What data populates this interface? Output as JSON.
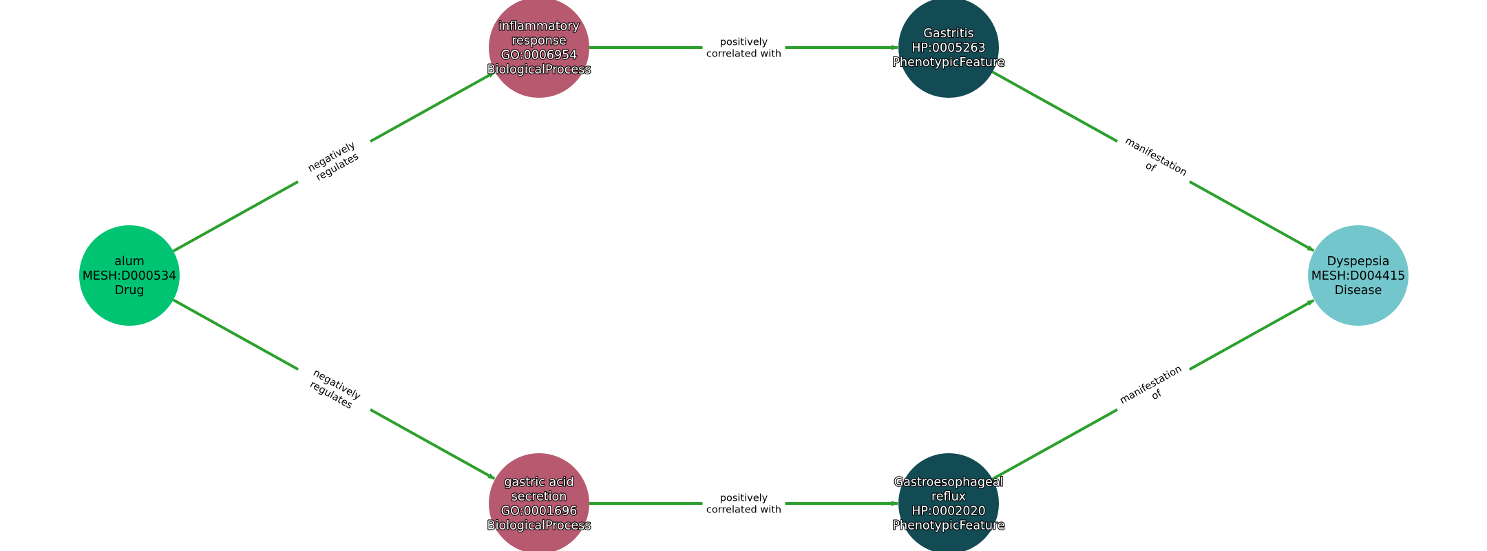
{
  "colors": {
    "edge": "#2ca02c",
    "drug": "#00c472",
    "biological_process": "#b75a6f",
    "phenotypic_feature": "#134b55",
    "disease": "#73c6cb"
  },
  "nodes": [
    {
      "id": "alum",
      "lines": [
        "alum",
        "MESH:D000534",
        "Drug"
      ],
      "kind": "drug"
    },
    {
      "id": "inflammatory",
      "lines": [
        "inflammatory",
        "response",
        "GO:0006954",
        "BiologicalProcess"
      ],
      "kind": "biological_process"
    },
    {
      "id": "gastric",
      "lines": [
        "gastric acid",
        "secretion",
        "GO:0001696",
        "BiologicalProcess"
      ],
      "kind": "biological_process"
    },
    {
      "id": "gastritis",
      "lines": [
        "Gastritis",
        "HP:0005263",
        "PhenotypicFeature"
      ],
      "kind": "phenotypic_feature"
    },
    {
      "id": "gerd",
      "lines": [
        "Gastroesophageal",
        "reflux",
        "HP:0002020",
        "PhenotypicFeature"
      ],
      "kind": "phenotypic_feature"
    },
    {
      "id": "dyspepsia",
      "lines": [
        "Dyspepsia",
        "MESH:D004415",
        "Disease"
      ],
      "kind": "disease"
    }
  ],
  "edges": [
    {
      "source": "alum",
      "target": "inflammatory",
      "label": [
        "negatively",
        "regulates"
      ]
    },
    {
      "source": "alum",
      "target": "gastric",
      "label": [
        "negatively",
        "regulates"
      ]
    },
    {
      "source": "inflammatory",
      "target": "gastritis",
      "label": [
        "positively",
        "correlated with"
      ]
    },
    {
      "source": "gastric",
      "target": "gerd",
      "label": [
        "positively",
        "correlated with"
      ]
    },
    {
      "source": "gastritis",
      "target": "dyspepsia",
      "label": [
        "manifestation",
        "of"
      ]
    },
    {
      "source": "gerd",
      "target": "dyspepsia",
      "label": [
        "manifestation",
        "of"
      ]
    }
  ]
}
